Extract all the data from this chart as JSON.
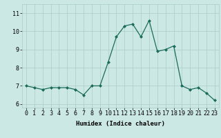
{
  "x": [
    0,
    1,
    2,
    3,
    4,
    5,
    6,
    7,
    8,
    9,
    10,
    11,
    12,
    13,
    14,
    15,
    16,
    17,
    18,
    19,
    20,
    21,
    22,
    23
  ],
  "y": [
    7.0,
    6.9,
    6.8,
    6.9,
    6.9,
    6.9,
    6.8,
    6.5,
    7.0,
    7.0,
    8.3,
    9.7,
    10.3,
    10.4,
    9.7,
    10.6,
    8.9,
    9.0,
    9.2,
    7.0,
    6.8,
    6.9,
    6.6,
    6.2
  ],
  "line_color": "#1a6b5a",
  "marker": "D",
  "markersize": 2.0,
  "linewidth": 0.9,
  "bg_color": "#cce8e4",
  "grid_color": "#aaccc8",
  "xlabel": "Humidex (Indice chaleur)",
  "xlabel_fontsize": 6.5,
  "tick_fontsize": 6.0,
  "ylim": [
    5.8,
    11.5
  ],
  "yticks": [
    6,
    7,
    8,
    9,
    10,
    11
  ],
  "xlim": [
    -0.5,
    23.5
  ]
}
